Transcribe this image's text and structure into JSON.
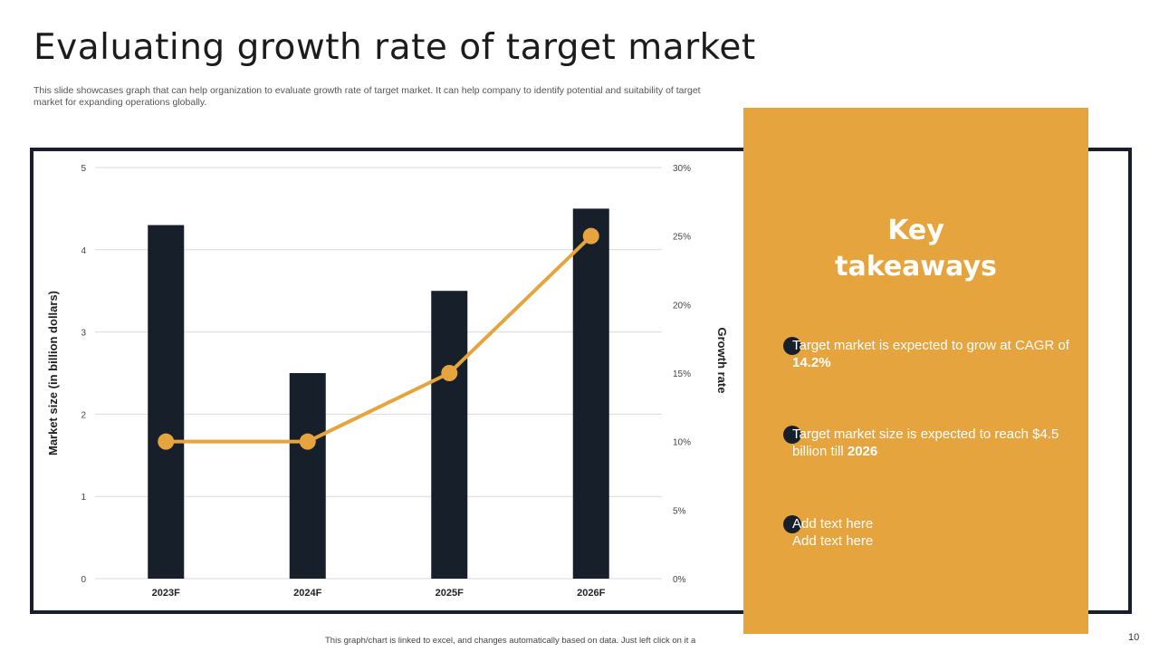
{
  "page": {
    "title": "Evaluating growth rate of target market",
    "subtitle": "This slide showcases graph that can help organization to evaluate growth rate of target market. It can help company to identify potential and suitability of target market for expanding operations globally.",
    "footer_note": "This graph/chart is linked to excel, and changes automatically based on data. Just left click on it a",
    "page_number": "10"
  },
  "takeaways": {
    "title_line1": "Key",
    "title_line2": "takeaways",
    "items": [
      {
        "text": "Target market is expected to grow at CAGR of ",
        "bold": "14.2%"
      },
      {
        "text": "Target market size is expected to reach $4.5 billion till ",
        "bold": "2026"
      },
      {
        "text": "Add text here Add text here",
        "bold": ""
      }
    ]
  },
  "colors": {
    "bar": "#17202a",
    "line": "#e6a43f",
    "panel": "#e6a43f",
    "frame": "#17202a"
  },
  "chart_data": {
    "type": "bar",
    "categories": [
      "2023F",
      "2024F",
      "2025F",
      "2026F"
    ],
    "series": [
      {
        "name": "Market size",
        "type": "bar",
        "axis": "left",
        "values": [
          4.3,
          2.5,
          3.5,
          4.5
        ]
      },
      {
        "name": "Growth rate",
        "type": "line",
        "axis": "right",
        "values": [
          10,
          10,
          15,
          25
        ]
      }
    ],
    "ylabel": "Market size (in billion dollars)",
    "y2label": "Growth rate",
    "ylim": [
      0,
      5
    ],
    "y2lim": [
      0,
      30
    ],
    "yticks": [
      "0",
      "1",
      "2",
      "3",
      "4",
      "5"
    ],
    "y2ticks": [
      "0%",
      "5%",
      "10%",
      "15%",
      "20%",
      "25%",
      "30%"
    ],
    "grid": true
  }
}
